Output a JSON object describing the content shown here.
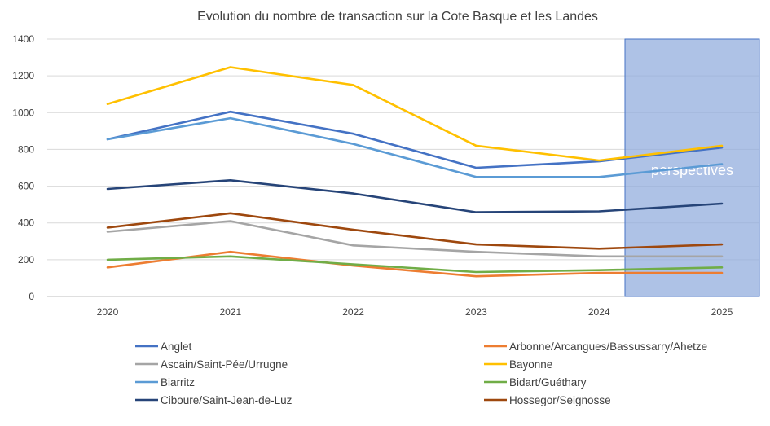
{
  "chart_data": {
    "type": "line",
    "title": "Evolution du nombre de transaction sur la Cote Basque et les Landes",
    "categories": [
      "2020",
      "2021",
      "2022",
      "2023",
      "2024",
      "2025"
    ],
    "ylim": [
      0,
      1400
    ],
    "yticks": [
      0,
      200,
      400,
      600,
      800,
      1000,
      1200,
      1400
    ],
    "grid": true,
    "legend_position": "bottom",
    "annotation": {
      "label": "perspectives",
      "category": "2025",
      "color": "#8FAADC"
    },
    "series": [
      {
        "name": "Anglet",
        "color": "#4472C4",
        "values": [
          855,
          1005,
          885,
          700,
          735,
          810
        ]
      },
      {
        "name": "Arbonne/Arcangues/Bassussarry/Ahetze",
        "color": "#ED7D31",
        "values": [
          158,
          243,
          168,
          110,
          128,
          128
        ]
      },
      {
        "name": "Ascain/Saint-Pée/Urrugne",
        "color": "#A5A5A5",
        "values": [
          352,
          410,
          278,
          243,
          218,
          218
        ]
      },
      {
        "name": "Bayonne",
        "color": "#FFC000",
        "values": [
          1047,
          1247,
          1150,
          820,
          740,
          820
        ]
      },
      {
        "name": "Biarritz",
        "color": "#5B9BD5",
        "values": [
          855,
          970,
          830,
          650,
          650,
          720
        ]
      },
      {
        "name": "Bidart/Guéthary",
        "color": "#70AD47",
        "values": [
          200,
          218,
          175,
          133,
          143,
          158
        ]
      },
      {
        "name": "Ciboure/Saint-Jean-de-Luz",
        "color": "#264478",
        "values": [
          585,
          632,
          560,
          458,
          463,
          505
        ]
      },
      {
        "name": "Hossegor/Seignosse",
        "color": "#9E480E",
        "values": [
          375,
          453,
          363,
          283,
          260,
          283
        ]
      }
    ]
  }
}
